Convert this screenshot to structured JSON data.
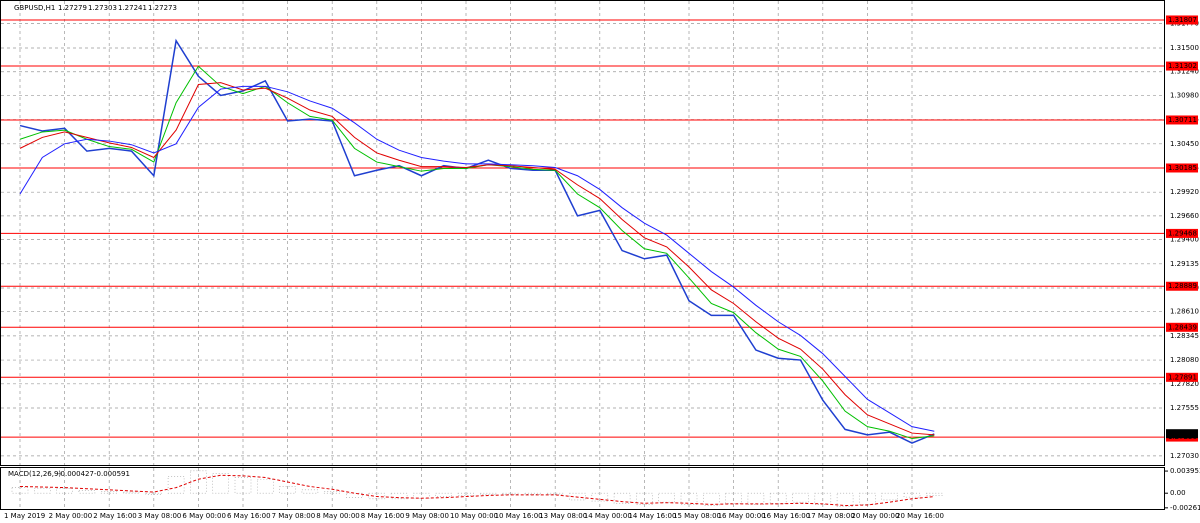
{
  "chart_data": [
    {
      "type": "line",
      "title": "GBPUSD,H1",
      "ohlc": [
        1.27279,
        1.27303,
        1.27241,
        1.27273
      ],
      "categories": [
        "1 May 2019",
        null,
        "2 May 00:00",
        null,
        "2 May 16:00",
        null,
        "3 May 08:00",
        null,
        "6 May 00:00",
        null,
        "6 May 16:00",
        null,
        "7 May 08:00",
        null,
        "8 May 00:00",
        null,
        "8 May 16:00",
        null,
        "9 May 08:00",
        null,
        "10 May 00:00",
        null,
        "10 May 16:00",
        null,
        "13 May 08:00",
        null,
        "14 May 00:00",
        null,
        "14 May 16:00",
        null,
        "15 May 08:00",
        null,
        "16 May 00:00",
        null,
        "16 May 16:00",
        null,
        "17 May 08:00",
        null,
        "20 May 00:00",
        null,
        "20 May 16:00",
        null
      ],
      "series": [
        {
          "color": "#1f3fd0",
          "values": [
            1.3065,
            1.3059,
            1.3062,
            1.3037,
            1.304,
            1.3037,
            1.301,
            1.3158,
            1.3119,
            1.3098,
            1.3103,
            1.3114,
            1.307,
            1.3072,
            1.307,
            1.301,
            1.3016,
            1.3021,
            1.301,
            1.3021,
            1.3018,
            1.3027,
            1.3018,
            1.3016,
            1.3016,
            1.2966,
            1.2972,
            1.2928,
            1.2919,
            1.2923,
            1.2873,
            1.2857,
            1.2857,
            1.2819,
            1.281,
            1.2808,
            1.2764,
            1.2732,
            1.2726,
            1.2729,
            1.2717,
            1.2727
          ]
        },
        {
          "color": "#00c000",
          "values": [
            1.305,
            1.3058,
            1.306,
            1.305,
            1.3042,
            1.3039,
            1.3025,
            1.309,
            1.313,
            1.3108,
            1.31,
            1.3108,
            1.309,
            1.3075,
            1.3071,
            1.304,
            1.3025,
            1.302,
            1.3015,
            1.3018,
            1.3018,
            1.3022,
            1.302,
            1.3017,
            1.3016,
            1.299,
            1.2975,
            1.295,
            1.293,
            1.2925,
            1.2898,
            1.287,
            1.286,
            1.2838,
            1.282,
            1.2812,
            1.2785,
            1.2752,
            1.2735,
            1.273,
            1.2722,
            1.2725
          ]
        },
        {
          "color": "#e00000",
          "values": [
            1.304,
            1.3052,
            1.3058,
            1.3052,
            1.3046,
            1.3041,
            1.303,
            1.306,
            1.311,
            1.3112,
            1.3104,
            1.3106,
            1.3095,
            1.3082,
            1.3075,
            1.3052,
            1.3035,
            1.3027,
            1.302,
            1.302,
            1.3019,
            1.3022,
            1.3021,
            1.3019,
            1.3017,
            1.3,
            1.2985,
            1.2962,
            1.2942,
            1.2932,
            1.291,
            1.2885,
            1.287,
            1.285,
            1.2832,
            1.282,
            1.2798,
            1.277,
            1.2748,
            1.2738,
            1.2728,
            1.2726
          ]
        },
        {
          "color": "#2020ff",
          "values": [
            1.299,
            1.303,
            1.3045,
            1.305,
            1.3048,
            1.3044,
            1.3035,
            1.3045,
            1.3085,
            1.3105,
            1.3108,
            1.3108,
            1.3102,
            1.3092,
            1.3084,
            1.3068,
            1.305,
            1.3038,
            1.303,
            1.3026,
            1.3023,
            1.3023,
            1.3022,
            1.3021,
            1.3019,
            1.301,
            1.2995,
            1.2975,
            1.2958,
            1.2945,
            1.2925,
            1.2905,
            1.2888,
            1.2868,
            1.285,
            1.2835,
            1.2815,
            1.279,
            1.2765,
            1.275,
            1.2735,
            1.273
          ]
        }
      ],
      "ylim": [
        1.2693,
        1.32015
      ],
      "yticks": [
        {
          "value": 1.3177,
          "label": "1.31770"
        },
        {
          "value": 1.315,
          "label": "1.31500"
        },
        {
          "value": 1.3124,
          "label": "1.31240"
        },
        {
          "value": 1.3098,
          "label": "1.30980"
        },
        1.30715,
        {
          "value": 1.3045,
          "label": "1.30450"
        },
        1.30185,
        {
          "value": 1.2992,
          "label": "1.29920"
        },
        {
          "value": 1.2966,
          "label": "1.29660"
        },
        {
          "value": 1.294,
          "label": "1.29400"
        },
        1.29135,
        {
          "value": 1.2887,
          "label": "1.28870"
        },
        {
          "value": 1.2861,
          "label": "1.28610"
        },
        1.28345,
        {
          "value": 1.2808,
          "label": "1.28080"
        },
        {
          "value": 1.2782,
          "label": "1.27820"
        },
        1.27555,
        {
          "value": 1.2703,
          "label": "1.27030"
        }
      ],
      "levels": [
        1.31807,
        1.31302,
        1.30711,
        1.30185,
        1.29468,
        1.28889,
        1.28439,
        1.27891,
        1.27236
      ],
      "level_color": "#ff0000",
      "last": 1.27273,
      "grid": true
    },
    {
      "type": "macd",
      "title": "MACD(12,26,9)",
      "readings": [
        -0.000427,
        -0.000591
      ],
      "series": [
        {
          "color": "#a0a0a0",
          "values": [
            0.001,
            0.0009,
            0.0008,
            0.0005,
            0.0003,
            0.0002,
            -0.0002,
            0.003,
            0.004,
            0.0035,
            0.0028,
            0.0024,
            0.0012,
            0.0006,
            0.0003,
            -0.0008,
            -0.001,
            -0.001,
            -0.0009,
            -0.0006,
            -0.0004,
            -0.0002,
            -0.0002,
            -0.0002,
            -0.0002,
            -0.0012,
            -0.0014,
            -0.0018,
            -0.002,
            -0.0016,
            -0.002,
            -0.0022,
            -0.0018,
            -0.002,
            -0.0018,
            -0.0016,
            -0.002,
            -0.0024,
            -0.002,
            -0.0012,
            -0.0007,
            -0.0004
          ]
        },
        {
          "color": "#e00000",
          "values": [
            0.0012,
            0.0011,
            0.001,
            0.0008,
            0.0006,
            0.0004,
            0.0002,
            0.001,
            0.0025,
            0.0032,
            0.0031,
            0.0028,
            0.002,
            0.0012,
            0.0007,
            0.0,
            -0.0006,
            -0.0008,
            -0.0009,
            -0.0008,
            -0.0006,
            -0.0004,
            -0.0003,
            -0.0003,
            -0.0003,
            -0.0007,
            -0.0011,
            -0.0015,
            -0.0018,
            -0.0017,
            -0.0018,
            -0.002,
            -0.0019,
            -0.0019,
            -0.0019,
            -0.0018,
            -0.0019,
            -0.0022,
            -0.0021,
            -0.0016,
            -0.001,
            -0.0006
          ]
        }
      ],
      "ylim": [
        -0.003,
        0.0045
      ],
      "yticks": [
        0.003953,
        {
          "value": 0,
          "label": "0.00"
        },
        -0.002615
      ]
    }
  ]
}
